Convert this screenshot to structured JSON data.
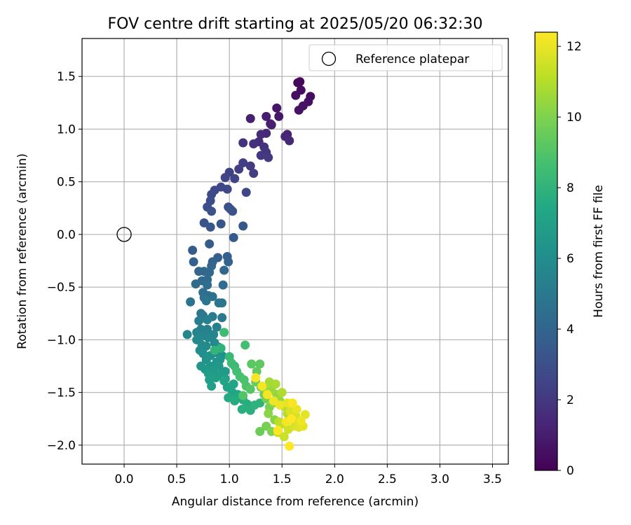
{
  "chart_data": {
    "type": "scatter",
    "title": "FOV centre drift starting at 2025/05/20 06:32:30",
    "xlabel": "Angular distance from reference (arcmin)",
    "ylabel": "Rotation from reference (arcmin)",
    "xlim": [
      -0.4,
      3.65
    ],
    "ylim": [
      -2.18,
      1.86
    ],
    "xticks": [
      "0.0",
      "0.5",
      "1.0",
      "1.5",
      "2.0",
      "2.5",
      "3.0",
      "3.5"
    ],
    "yticks": [
      "1.5",
      "1.0",
      "0.5",
      "0.0",
      "−0.5",
      "−1.0",
      "−1.5",
      "−2.0"
    ],
    "grid": true,
    "legend": {
      "position": "top-right",
      "label": "Reference platepar"
    },
    "reference_point": {
      "x": 0.0,
      "y": 0.0
    },
    "colorbar": {
      "label": "Hours from first FF file",
      "range": [
        0,
        12.4
      ],
      "ticks": [
        "0",
        "2",
        "4",
        "6",
        "8",
        "10",
        "12"
      ],
      "colormap": "viridis"
    },
    "points": [
      [
        1.67,
        1.45,
        0.2
      ],
      [
        1.65,
        1.44,
        0.3
      ],
      [
        1.77,
        1.31,
        0.4
      ],
      [
        1.63,
        1.32,
        0.5
      ],
      [
        1.68,
        1.37,
        0.4
      ],
      [
        1.75,
        1.26,
        0.5
      ],
      [
        1.7,
        1.22,
        0.6
      ],
      [
        1.66,
        1.18,
        0.6
      ],
      [
        1.45,
        1.2,
        0.7
      ],
      [
        1.47,
        1.12,
        0.8
      ],
      [
        1.35,
        1.12,
        1.0
      ],
      [
        1.39,
        1.05,
        1.0
      ],
      [
        1.4,
        1.04,
        1.1
      ],
      [
        1.2,
        1.1,
        1.1
      ],
      [
        1.55,
        0.95,
        1.2
      ],
      [
        1.53,
        0.93,
        1.3
      ],
      [
        1.57,
        0.89,
        1.4
      ],
      [
        1.35,
        0.96,
        1.4
      ],
      [
        1.3,
        0.95,
        1.5
      ],
      [
        1.28,
        0.88,
        1.6
      ],
      [
        1.23,
        0.86,
        1.7
      ],
      [
        1.13,
        0.87,
        1.8
      ],
      [
        1.33,
        0.83,
        1.8
      ],
      [
        1.35,
        0.78,
        1.9
      ],
      [
        1.3,
        0.75,
        2.0
      ],
      [
        1.37,
        0.73,
        2.1
      ],
      [
        1.2,
        0.65,
        2.1
      ],
      [
        1.23,
        0.58,
        2.2
      ],
      [
        1.13,
        0.68,
        2.3
      ],
      [
        1.09,
        0.62,
        2.3
      ],
      [
        1.0,
        0.59,
        2.4
      ],
      [
        1.05,
        0.53,
        2.5
      ],
      [
        0.96,
        0.54,
        2.5
      ],
      [
        0.92,
        0.45,
        2.6
      ],
      [
        0.98,
        0.43,
        2.7
      ],
      [
        1.16,
        0.4,
        2.6
      ],
      [
        0.86,
        0.42,
        2.7
      ],
      [
        0.83,
        0.38,
        2.8
      ],
      [
        0.82,
        0.32,
        2.9
      ],
      [
        0.79,
        0.26,
        3.0
      ],
      [
        0.99,
        0.26,
        3.0
      ],
      [
        1.01,
        0.24,
        3.1
      ],
      [
        0.83,
        0.22,
        3.1
      ],
      [
        1.03,
        0.22,
        3.2
      ],
      [
        0.76,
        0.11,
        3.2
      ],
      [
        0.92,
        0.1,
        3.3
      ],
      [
        0.82,
        0.07,
        3.3
      ],
      [
        1.13,
        0.08,
        3.4
      ],
      [
        1.04,
        -0.03,
        3.5
      ],
      [
        0.81,
        -0.09,
        3.6
      ],
      [
        0.65,
        -0.15,
        3.6
      ],
      [
        0.89,
        -0.22,
        3.7
      ],
      [
        0.98,
        -0.21,
        3.7
      ],
      [
        0.66,
        -0.26,
        3.8
      ],
      [
        0.99,
        -0.26,
        3.9
      ],
      [
        0.84,
        -0.26,
        3.9
      ],
      [
        0.83,
        -0.3,
        4.0
      ],
      [
        0.71,
        -0.35,
        4.0
      ],
      [
        0.95,
        -0.34,
        4.1
      ],
      [
        0.76,
        -0.35,
        4.1
      ],
      [
        0.81,
        -0.36,
        4.2
      ],
      [
        0.79,
        -0.43,
        4.2
      ],
      [
        0.74,
        -0.44,
        4.3
      ],
      [
        0.68,
        -0.47,
        4.3
      ],
      [
        0.94,
        -0.48,
        4.4
      ],
      [
        0.79,
        -0.48,
        4.4
      ],
      [
        0.75,
        -0.55,
        4.5
      ],
      [
        0.8,
        -0.58,
        4.5
      ],
      [
        0.84,
        -0.59,
        4.6
      ],
      [
        0.76,
        -0.6,
        4.6
      ],
      [
        0.63,
        -0.64,
        4.7
      ],
      [
        0.9,
        -0.65,
        4.7
      ],
      [
        0.93,
        -0.65,
        4.8
      ],
      [
        0.78,
        -0.63,
        4.8
      ],
      [
        0.73,
        -0.75,
        4.9
      ],
      [
        0.75,
        -0.77,
        5.0
      ],
      [
        0.93,
        -0.79,
        5.0
      ],
      [
        0.84,
        -0.78,
        5.1
      ],
      [
        0.71,
        -0.82,
        5.2
      ],
      [
        0.79,
        -0.81,
        5.3
      ],
      [
        0.88,
        -0.88,
        5.3
      ],
      [
        0.73,
        -0.9,
        5.4
      ],
      [
        0.79,
        -0.9,
        5.4
      ],
      [
        0.69,
        -0.93,
        5.5
      ],
      [
        0.77,
        -0.94,
        5.5
      ],
      [
        0.6,
        -0.95,
        5.6
      ],
      [
        0.85,
        -0.95,
        5.6
      ],
      [
        0.73,
        -0.97,
        5.7
      ],
      [
        0.8,
        -0.98,
        5.7
      ],
      [
        0.69,
        -1.0,
        5.8
      ],
      [
        0.86,
        -1.03,
        5.8
      ],
      [
        0.74,
        -1.05,
        5.9
      ],
      [
        0.78,
        -1.06,
        5.9
      ],
      [
        0.9,
        -1.07,
        6.0
      ],
      [
        0.72,
        -1.1,
        6.0
      ],
      [
        0.87,
        -1.12,
        6.1
      ],
      [
        0.75,
        -1.13,
        6.1
      ],
      [
        0.82,
        -1.15,
        6.2
      ],
      [
        0.93,
        -1.15,
        6.2
      ],
      [
        0.79,
        -1.17,
        6.3
      ],
      [
        0.78,
        -1.19,
        6.3
      ],
      [
        0.91,
        -1.19,
        6.4
      ],
      [
        0.88,
        -1.21,
        6.4
      ],
      [
        0.73,
        -1.25,
        6.5
      ],
      [
        0.82,
        -1.25,
        6.5
      ],
      [
        0.9,
        -1.25,
        6.6
      ],
      [
        0.77,
        -1.28,
        6.6
      ],
      [
        0.85,
        -1.29,
        6.7
      ],
      [
        0.96,
        -1.3,
        6.7
      ],
      [
        0.8,
        -1.32,
        6.8
      ],
      [
        0.92,
        -1.33,
        6.8
      ],
      [
        0.87,
        -1.36,
        6.9
      ],
      [
        0.96,
        -1.37,
        6.9
      ],
      [
        0.81,
        -1.38,
        7.0
      ],
      [
        0.83,
        -1.44,
        7.0
      ],
      [
        0.98,
        -1.45,
        7.1
      ],
      [
        1.04,
        -1.42,
        7.2
      ],
      [
        0.95,
        -1.39,
        7.2
      ],
      [
        1.03,
        -1.5,
        7.3
      ],
      [
        1.08,
        -1.52,
        7.4
      ],
      [
        0.99,
        -1.55,
        7.5
      ],
      [
        1.13,
        -1.57,
        7.6
      ],
      [
        1.05,
        -1.58,
        7.6
      ],
      [
        1.17,
        -1.61,
        7.7
      ],
      [
        1.12,
        -1.66,
        7.8
      ],
      [
        1.2,
        -1.67,
        7.8
      ],
      [
        1.24,
        -1.62,
        7.9
      ],
      [
        1.29,
        -1.6,
        8.0
      ],
      [
        0.92,
        -1.08,
        8.0
      ],
      [
        0.86,
        -1.1,
        8.1
      ],
      [
        0.95,
        -0.93,
        8.5
      ],
      [
        1.15,
        -1.05,
        8.6
      ],
      [
        1.0,
        -1.16,
        8.3
      ],
      [
        1.02,
        -1.22,
        8.5
      ],
      [
        1.05,
        -1.25,
        8.4
      ],
      [
        1.07,
        -1.3,
        8.6
      ],
      [
        1.1,
        -1.35,
        8.7
      ],
      [
        1.14,
        -1.38,
        8.8
      ],
      [
        1.16,
        -1.44,
        8.9
      ],
      [
        1.13,
        -1.53,
        9.0
      ],
      [
        1.2,
        -1.47,
        9.1
      ],
      [
        1.21,
        -1.23,
        9.2
      ],
      [
        1.29,
        -1.23,
        9.3
      ],
      [
        1.26,
        -1.3,
        9.4
      ],
      [
        1.25,
        -1.4,
        9.5
      ],
      [
        1.3,
        -1.45,
        9.6
      ],
      [
        1.33,
        -1.52,
        9.7
      ],
      [
        1.35,
        -1.56,
        9.8
      ],
      [
        1.38,
        -1.64,
        9.9
      ],
      [
        1.29,
        -1.87,
        9.6
      ],
      [
        1.35,
        -1.82,
        9.8
      ],
      [
        1.4,
        -1.87,
        10.0
      ],
      [
        1.43,
        -1.76,
        10.1
      ],
      [
        1.37,
        -1.7,
        10.2
      ],
      [
        1.42,
        -1.6,
        10.3
      ],
      [
        1.45,
        -1.52,
        10.4
      ],
      [
        1.48,
        -1.58,
        10.5
      ],
      [
        1.4,
        -1.48,
        10.5
      ],
      [
        1.33,
        -1.45,
        10.6
      ],
      [
        1.38,
        -1.4,
        10.7
      ],
      [
        1.44,
        -1.42,
        10.8
      ],
      [
        1.5,
        -1.5,
        10.9
      ],
      [
        1.52,
        -1.63,
        11.0
      ],
      [
        1.55,
        -1.7,
        11.0
      ],
      [
        1.47,
        -1.78,
        11.1
      ],
      [
        1.5,
        -1.8,
        11.2
      ],
      [
        1.46,
        -1.88,
        11.3
      ],
      [
        1.52,
        -1.92,
        11.4
      ],
      [
        1.56,
        -1.85,
        11.5
      ],
      [
        1.6,
        -1.76,
        11.5
      ],
      [
        1.63,
        -1.72,
        11.6
      ],
      [
        1.58,
        -1.68,
        11.7
      ],
      [
        1.62,
        -1.82,
        11.7
      ],
      [
        1.66,
        -1.83,
        11.8
      ],
      [
        1.7,
        -1.82,
        11.9
      ],
      [
        1.72,
        -1.71,
        11.9
      ],
      [
        1.64,
        -1.66,
        12.0
      ],
      [
        1.55,
        -1.6,
        12.0
      ],
      [
        1.48,
        -1.62,
        12.1
      ],
      [
        1.42,
        -1.58,
        12.1
      ],
      [
        1.36,
        -1.52,
        12.2
      ],
      [
        1.31,
        -1.44,
        12.2
      ],
      [
        1.25,
        -1.36,
        12.3
      ],
      [
        1.6,
        -1.6,
        12.3
      ],
      [
        1.57,
        -2.01,
        12.4
      ],
      [
        1.46,
        -1.86,
        12.4
      ],
      [
        1.54,
        -1.78,
        12.2
      ],
      [
        1.59,
        -1.75,
        12.4
      ],
      [
        1.68,
        -1.77,
        12.1
      ]
    ]
  }
}
